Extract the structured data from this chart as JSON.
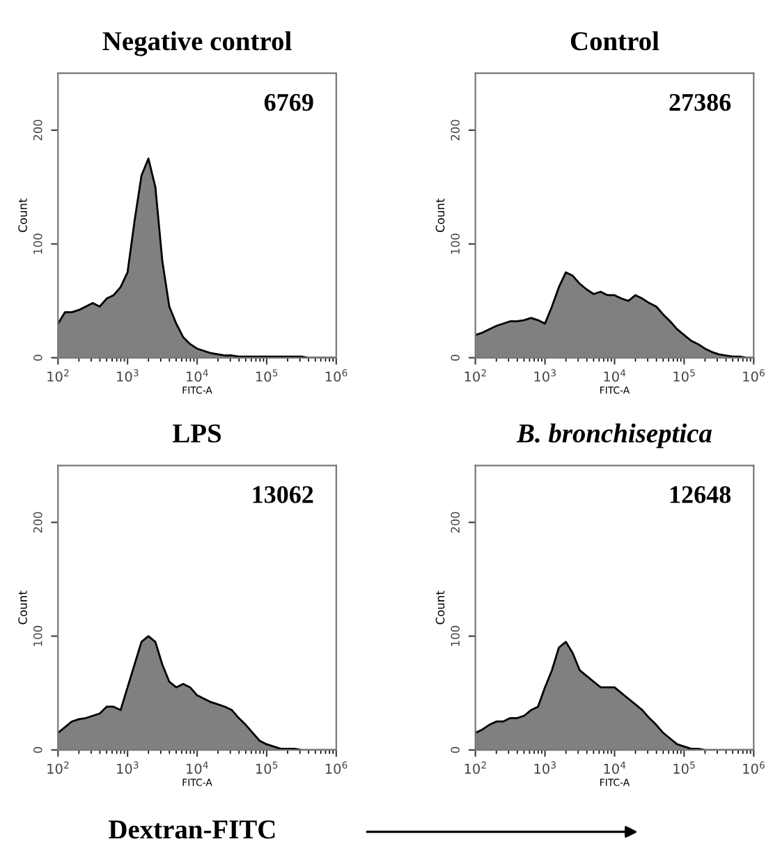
{
  "chart_data": [
    {
      "type": "area",
      "title": "Negative control",
      "xlabel": "FITC-A",
      "ylabel": "Count",
      "log": "x",
      "color": "#808080",
      "annotations": [
        "6769"
      ],
      "x": [
        100,
        126,
        158,
        200,
        251,
        316,
        398,
        501,
        631,
        794,
        1000,
        1259,
        1585,
        1995,
        2512,
        3162,
        3981,
        5012,
        6310,
        7943,
        10000,
        12589,
        15849,
        19953,
        25119,
        31623,
        39811,
        50119,
        63096,
        79433,
        100000,
        125893,
        158489,
        199526,
        251189,
        316228,
        398107,
        501187,
        630957,
        794328,
        1000000
      ],
      "values": [
        30,
        40,
        40,
        42,
        45,
        48,
        45,
        52,
        55,
        62,
        75,
        120,
        160,
        175,
        150,
        85,
        45,
        30,
        18,
        12,
        8,
        6,
        4,
        3,
        2,
        2,
        1,
        1,
        1,
        1,
        1,
        1,
        1,
        1,
        1,
        1,
        0,
        0,
        0,
        0,
        0
      ],
      "xlim": [
        100,
        1000000
      ],
      "ylim": [
        0,
        250
      ],
      "xticks": [
        {
          "value": 100,
          "label": "10$^{2}$"
        },
        {
          "value": 1000,
          "label": "10$^{3}$"
        },
        {
          "value": 10000,
          "label": "10$^{4}$"
        },
        {
          "value": 100000,
          "label": "10$^{5}$"
        },
        {
          "value": 1000000,
          "label": "10$^{6}$"
        }
      ],
      "yticks": [
        0,
        100,
        200
      ]
    },
    {
      "type": "area",
      "title": "Control",
      "xlabel": "FITC-A",
      "ylabel": "Count",
      "log": "x",
      "color": "#808080",
      "annotations": [
        "27386"
      ],
      "x": [
        100,
        126,
        158,
        200,
        251,
        316,
        398,
        501,
        631,
        794,
        1000,
        1259,
        1585,
        1995,
        2512,
        3162,
        3981,
        5012,
        6310,
        7943,
        10000,
        12589,
        15849,
        19953,
        25119,
        31623,
        39811,
        50119,
        63096,
        79433,
        100000,
        125893,
        158489,
        199526,
        251189,
        316228,
        398107,
        501187,
        630957,
        794328,
        1000000
      ],
      "values": [
        20,
        22,
        25,
        28,
        30,
        32,
        32,
        33,
        35,
        33,
        30,
        45,
        62,
        75,
        72,
        65,
        60,
        56,
        58,
        55,
        55,
        52,
        50,
        55,
        52,
        48,
        45,
        38,
        32,
        25,
        20,
        15,
        12,
        8,
        5,
        3,
        2,
        1,
        1,
        0,
        0
      ],
      "xlim": [
        100,
        1000000
      ],
      "ylim": [
        0,
        250
      ],
      "xticks": [
        {
          "value": 100,
          "label": "10$^{2}$"
        },
        {
          "value": 1000,
          "label": "10$^{3}$"
        },
        {
          "value": 10000,
          "label": "10$^{4}$"
        },
        {
          "value": 100000,
          "label": "10$^{5}$"
        },
        {
          "value": 1000000,
          "label": "10$^{6}$"
        }
      ],
      "yticks": [
        0,
        100,
        200
      ]
    },
    {
      "type": "area",
      "title": "LPS",
      "xlabel": "FITC-A",
      "ylabel": "Count",
      "log": "x",
      "color": "#808080",
      "annotations": [
        "13062",
        "Dextran-FITC"
      ],
      "x": [
        100,
        126,
        158,
        200,
        251,
        316,
        398,
        501,
        631,
        794,
        1000,
        1259,
        1585,
        1995,
        2512,
        3162,
        3981,
        5012,
        6310,
        7943,
        10000,
        12589,
        15849,
        19953,
        25119,
        31623,
        39811,
        50119,
        63096,
        79433,
        100000,
        125893,
        158489,
        199526,
        251189,
        316228,
        398107,
        501187,
        630957,
        794328,
        1000000
      ],
      "values": [
        15,
        20,
        25,
        27,
        28,
        30,
        32,
        38,
        38,
        35,
        55,
        75,
        95,
        100,
        95,
        75,
        60,
        55,
        58,
        55,
        48,
        45,
        42,
        40,
        38,
        35,
        28,
        22,
        15,
        8,
        5,
        3,
        1,
        1,
        1,
        0,
        0,
        0,
        0,
        0,
        0
      ],
      "xlim": [
        100,
        1000000
      ],
      "ylim": [
        0,
        250
      ],
      "xticks": [
        {
          "value": 100,
          "label": "10$^{2}$"
        },
        {
          "value": 1000,
          "label": "10$^{3}$"
        },
        {
          "value": 10000,
          "label": "10$^{4}$"
        },
        {
          "value": 100000,
          "label": "10$^{5}$"
        },
        {
          "value": 1000000,
          "label": "10$^{6}$"
        }
      ],
      "yticks": [
        0,
        100,
        200
      ]
    },
    {
      "type": "area",
      "title": "B. bronchiseptica",
      "xlabel": "FITC-A",
      "ylabel": "Count",
      "log": "x",
      "color": "#808080",
      "annotations": [
        "12648"
      ],
      "x": [
        100,
        126,
        158,
        200,
        251,
        316,
        398,
        501,
        631,
        794,
        1000,
        1259,
        1585,
        1995,
        2512,
        3162,
        3981,
        5012,
        6310,
        7943,
        10000,
        12589,
        15849,
        19953,
        25119,
        31623,
        39811,
        50119,
        63096,
        79433,
        100000,
        125893,
        158489,
        199526,
        251189,
        316228,
        398107,
        501187,
        630957,
        794328,
        1000000
      ],
      "values": [
        15,
        18,
        22,
        25,
        25,
        28,
        28,
        30,
        35,
        38,
        55,
        70,
        90,
        95,
        85,
        70,
        65,
        60,
        55,
        55,
        55,
        50,
        45,
        40,
        35,
        28,
        22,
        15,
        10,
        5,
        3,
        1,
        1,
        0,
        0,
        0,
        0,
        0,
        0,
        0,
        0
      ],
      "xlim": [
        100,
        1000000
      ],
      "ylim": [
        0,
        250
      ],
      "xticks": [
        {
          "value": 100,
          "label": "10$^{2}$"
        },
        {
          "value": 1000,
          "label": "10$^{3}$"
        },
        {
          "value": 10000,
          "label": "10$^{4}$"
        },
        {
          "value": 100000,
          "label": "10$^{5}$"
        },
        {
          "value": 1000000,
          "label": "10$^{6}$"
        }
      ],
      "yticks": [
        0,
        100,
        200
      ]
    }
  ]
}
